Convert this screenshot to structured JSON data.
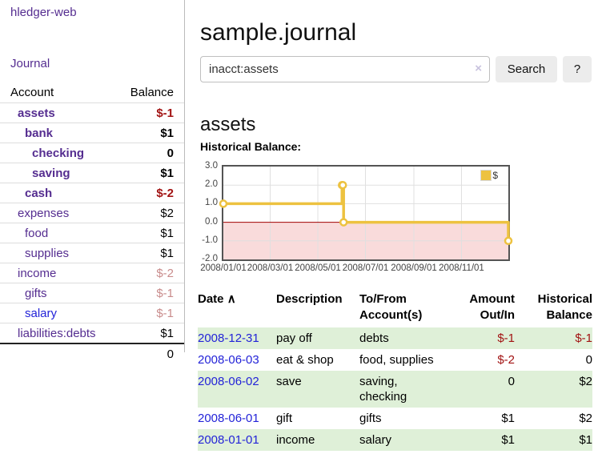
{
  "sidebar": {
    "app_title": "hledger-web",
    "journal_label": "Journal",
    "accounts_table": {
      "account_header": "Account",
      "balance_header": "Balance",
      "rows": [
        {
          "name": "assets",
          "balance": "$-1",
          "depth": 1,
          "bold": true,
          "neg": "strong"
        },
        {
          "name": "bank",
          "balance": "$1",
          "depth": 2,
          "bold": true
        },
        {
          "name": "checking",
          "balance": "0",
          "depth": 3,
          "bold": true
        },
        {
          "name": "saving",
          "balance": "$1",
          "depth": 3,
          "bold": true
        },
        {
          "name": "cash",
          "balance": "$-2",
          "depth": 2,
          "bold": true,
          "neg": "strong"
        },
        {
          "name": "expenses",
          "balance": "$2",
          "depth": 1
        },
        {
          "name": "food",
          "balance": "$1",
          "depth": 2
        },
        {
          "name": "supplies",
          "balance": "$1",
          "depth": 2
        },
        {
          "name": "income",
          "balance": "$-2",
          "depth": 1,
          "neg": "dim"
        },
        {
          "name": "gifts",
          "balance": "$-1",
          "depth": 2,
          "neg": "dim"
        },
        {
          "name": "salary",
          "balance": "$-1",
          "depth": 2,
          "neg": "dim",
          "link_color": "blue"
        },
        {
          "name": "liabilities:debts",
          "balance": "$1",
          "depth": 1
        }
      ],
      "total": "0"
    }
  },
  "header": {
    "title": "sample.journal"
  },
  "search": {
    "query": "inacct:assets",
    "clear_icon": "×",
    "button_label": "Search",
    "help_label": "?"
  },
  "account_page": {
    "title": "assets",
    "chart_label": "Historical Balance:"
  },
  "chart_data": {
    "type": "line",
    "title": "Historical Balance:",
    "step": true,
    "grid": true,
    "x_start": "2008-01-01",
    "x_end": "2008-12-31",
    "ylim": [
      -2.0,
      3.0
    ],
    "y_ticks": [
      3.0,
      2.0,
      1.0,
      0.0,
      -1.0,
      -2.0
    ],
    "x_ticks": [
      "2008/01/01",
      "2008/03/01",
      "2008/05/01",
      "2008/07/01",
      "2008/09/01",
      "2008/11/01"
    ],
    "series": [
      {
        "name": "$",
        "color": "#edc240",
        "points": [
          {
            "date": "2008-01-01",
            "value": 1.0
          },
          {
            "date": "2008-06-01",
            "value": 2.0
          },
          {
            "date": "2008-06-02",
            "value": 2.0
          },
          {
            "date": "2008-06-03",
            "value": 0.0
          },
          {
            "date": "2008-12-31",
            "value": -1.0
          }
        ]
      }
    ],
    "negative_region": {
      "fill": "#f9dbdb",
      "line": "#a00000"
    },
    "grid_color": "#e0e0e0",
    "legend": {
      "position": "top-right",
      "label": "$"
    }
  },
  "register_table": {
    "headers": {
      "date": "Date",
      "sort_icon": "∧",
      "description": "Description",
      "accounts": "To/From Account(s)",
      "amount": "Amount Out/In",
      "balance": "Historical Balance"
    },
    "rows": [
      {
        "date": "2008-12-31",
        "description": "pay off",
        "accounts": "debts",
        "amount": "$-1",
        "amount_negative": true,
        "balance": "$-1",
        "balance_negative": true
      },
      {
        "date": "2008-06-03",
        "description": "eat & shop",
        "accounts": "food, supplies",
        "amount": "$-2",
        "amount_negative": true,
        "balance": "0",
        "balance_negative": false
      },
      {
        "date": "2008-06-02",
        "description": "save",
        "accounts": "saving, checking",
        "amount": "0",
        "amount_negative": false,
        "balance": "$2",
        "balance_negative": false
      },
      {
        "date": "2008-06-01",
        "description": "gift",
        "accounts": "gifts",
        "amount": "$1",
        "amount_negative": false,
        "balance": "$2",
        "balance_negative": false
      },
      {
        "date": "2008-01-01",
        "description": "income",
        "accounts": "salary",
        "amount": "$1",
        "amount_negative": false,
        "balance": "$1",
        "balance_negative": false
      }
    ]
  }
}
